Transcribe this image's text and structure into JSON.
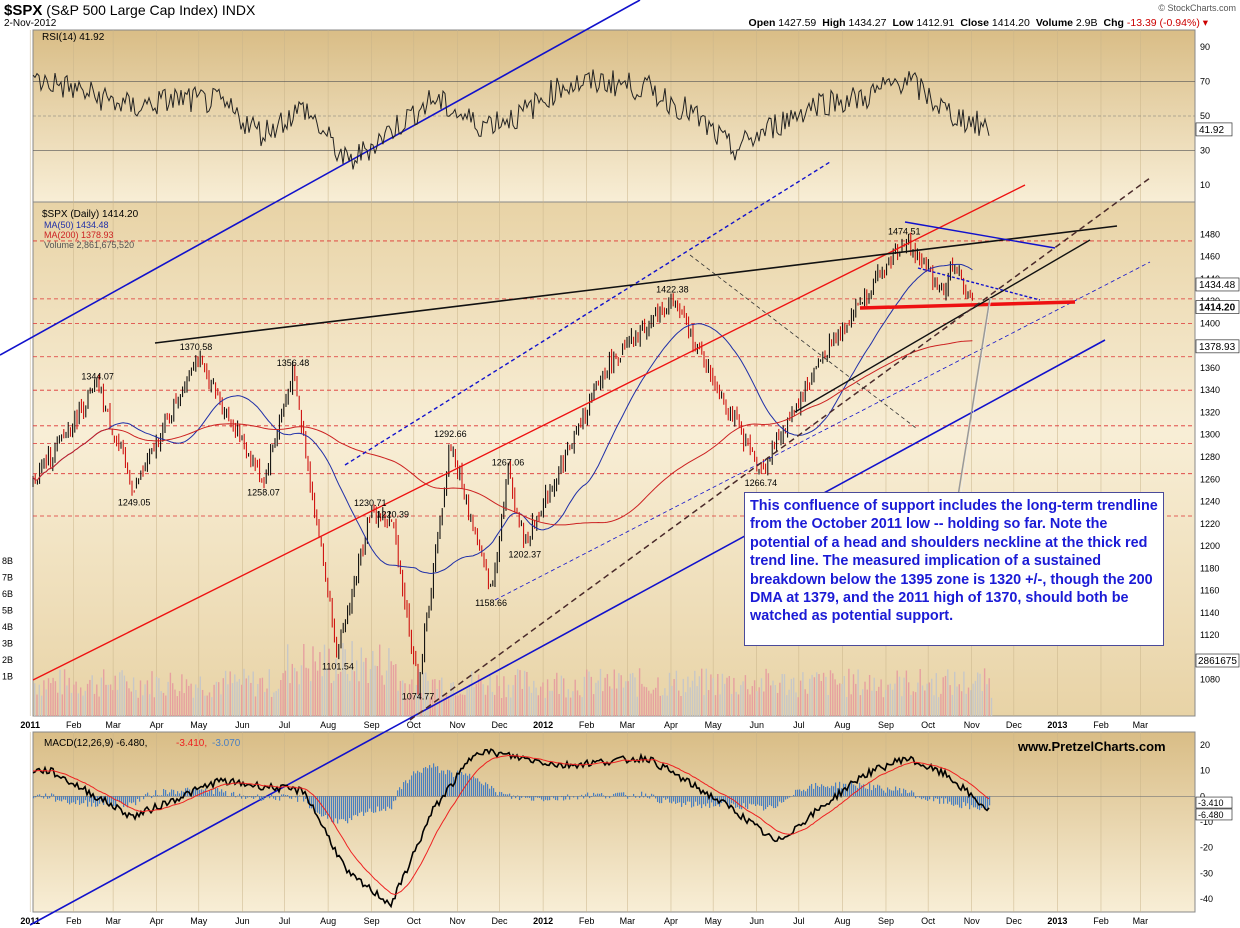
{
  "header": {
    "symbol": "$SPX",
    "name": "(S&P 500 Large Cap Index)",
    "exchange": "INDX",
    "date": "2-Nov-2012",
    "credit": "© StockCharts.com",
    "ohlc": [
      {
        "label": "Open",
        "value": "1427.59"
      },
      {
        "label": "High",
        "value": "1434.27"
      },
      {
        "label": "Low",
        "value": "1412.91"
      },
      {
        "label": "Close",
        "value": "1414.20"
      },
      {
        "label": "Volume",
        "value": "2.9B"
      },
      {
        "label": "Chg",
        "value": "-13.39 (-0.94%) ▾"
      }
    ]
  },
  "colors": {
    "panel_bg": "#e8d3a6",
    "panel_bg_light": "#f8eed6",
    "up": "#000000",
    "down": "#cc0000",
    "ma50": "#1f2fa8",
    "ma200": "#cc2222",
    "trend_blue": "#1111cc",
    "trend_red": "#ee1111"
  },
  "chart_data": [
    {
      "type": "line",
      "panel": "RSI",
      "legend": "RSI(14) 41.92",
      "yticks": [
        90,
        70,
        50,
        30,
        10
      ],
      "last_label": "41.92",
      "ylim": [
        0,
        100
      ],
      "x": [
        "2011-01",
        "2011-02",
        "2011-03",
        "2011-04",
        "2011-05",
        "2011-06",
        "2011-07",
        "2011-08",
        "2011-09",
        "2011-10",
        "2011-11",
        "2011-12",
        "2012-01",
        "2012-02",
        "2012-03",
        "2012-04",
        "2012-05",
        "2012-06",
        "2012-07",
        "2012-08",
        "2012-09",
        "2012-10",
        "2012-11"
      ],
      "values": [
        70,
        62,
        55,
        60,
        58,
        40,
        55,
        22,
        42,
        60,
        45,
        50,
        68,
        70,
        66,
        52,
        30,
        45,
        58,
        60,
        72,
        52,
        42
      ]
    },
    {
      "type": "candlestick",
      "panel": "Price",
      "legend": [
        "$SPX (Daily) 1414.20",
        "MA(50) 1434.48",
        "MA(200) 1378.93",
        "Volume 2,861,675,520"
      ],
      "ylim": [
        1060,
        1500
      ],
      "yticks": [
        1480,
        1460,
        1440,
        1420,
        1400,
        1380,
        1360,
        1340,
        1320,
        1300,
        1280,
        1260,
        1240,
        1220,
        1200,
        1180,
        1160,
        1140,
        1120,
        1100,
        1080
      ],
      "right_labels": [
        "1434.48",
        "1414.20",
        "1378.93",
        "2861675"
      ],
      "vol_ticks": [
        "8B",
        "7B",
        "6B",
        "5B",
        "4B",
        "3B",
        "2B",
        "1B"
      ],
      "months": [
        "2011",
        "Feb",
        "Mar",
        "Apr",
        "May",
        "Jun",
        "Jul",
        "Aug",
        "Sep",
        "Oct",
        "Nov",
        "Dec",
        "2012",
        "Feb",
        "Mar",
        "Apr",
        "May",
        "Jun",
        "Jul",
        "Aug",
        "Sep",
        "Oct",
        "Nov",
        "Dec",
        "2013",
        "Feb",
        "Mar"
      ],
      "close_path": [
        [
          "2011-01-03",
          1258
        ],
        [
          "2011-02-18",
          1344.07
        ],
        [
          "2011-03-16",
          1249.05
        ],
        [
          "2011-04-29",
          1370.58
        ],
        [
          "2011-06-16",
          1258.07
        ],
        [
          "2011-07-07",
          1356.48
        ],
        [
          "2011-08-08",
          1101.54
        ],
        [
          "2011-08-31",
          1230.71
        ],
        [
          "2011-09-16",
          1220.39
        ],
        [
          "2011-10-04",
          1074.77
        ],
        [
          "2011-10-27",
          1292.66
        ],
        [
          "2011-11-25",
          1158.66
        ],
        [
          "2011-12-07",
          1267.06
        ],
        [
          "2011-12-19",
          1202.37
        ],
        [
          "2012-02-15",
          1360
        ],
        [
          "2012-04-02",
          1422.38
        ],
        [
          "2012-06-04",
          1266.74
        ],
        [
          "2012-07-20",
          1375
        ],
        [
          "2012-09-14",
          1474.51
        ],
        [
          "2012-10-12",
          1430
        ],
        [
          "2012-10-19",
          1455
        ],
        [
          "2012-11-02",
          1414.2
        ]
      ],
      "price_labels": [
        {
          "text": "1344.07",
          "x": "2011-02-18",
          "y": 1344.07
        },
        {
          "text": "1370.58",
          "x": "2011-04-29",
          "y": 1370.58
        },
        {
          "text": "1356.48",
          "x": "2011-07-07",
          "y": 1356.48
        },
        {
          "text": "1249.05",
          "x": "2011-03-16",
          "y": 1249.05
        },
        {
          "text": "1258.07",
          "x": "2011-06-16",
          "y": 1258.07
        },
        {
          "text": "1230.71",
          "x": "2011-08-31",
          "y": 1230.71
        },
        {
          "text": "1220.39",
          "x": "2011-09-16",
          "y": 1220.39
        },
        {
          "text": "1101.54",
          "x": "2011-08-08",
          "y": 1101.54
        },
        {
          "text": "1074.77",
          "x": "2011-10-04",
          "y": 1074.77
        },
        {
          "text": "1292.66",
          "x": "2011-10-27",
          "y": 1292.66
        },
        {
          "text": "1267.06",
          "x": "2011-12-07",
          "y": 1267.06
        },
        {
          "text": "1202.37",
          "x": "2011-12-19",
          "y": 1202.37
        },
        {
          "text": "1158.66",
          "x": "2011-11-25",
          "y": 1158.66
        },
        {
          "text": "1422.38",
          "x": "2012-04-02",
          "y": 1422.38
        },
        {
          "text": "1266.74",
          "x": "2012-06-04",
          "y": 1266.74
        },
        {
          "text": "1474.51",
          "x": "2012-09-14",
          "y": 1474.51
        }
      ]
    },
    {
      "type": "line",
      "panel": "MACD",
      "legend": [
        "MACD(12,26,9) -6.480,",
        "-3.410,",
        "-3.070"
      ],
      "yticks": [
        20,
        10,
        0,
        -10,
        -20,
        -30,
        -40
      ],
      "right_labels": [
        "-3.410",
        "-6.480"
      ],
      "ylim": [
        -45,
        25
      ],
      "x": [
        "2011-01",
        "2011-03",
        "2011-05",
        "2011-07",
        "2011-08",
        "2011-09",
        "2011-10",
        "2011-11",
        "2012-01",
        "2012-03",
        "2012-05",
        "2012-06",
        "2012-08",
        "2012-09",
        "2012-10",
        "2012-11"
      ],
      "values": [
        10,
        -8,
        6,
        2,
        -30,
        -42,
        -5,
        18,
        12,
        15,
        -5,
        -18,
        8,
        15,
        8,
        -6.48
      ]
    }
  ],
  "annotation": "This confluence of support includes the long-term trendline from the October 2011 low -- holding so far.  Note the potential of a head and shoulders neckline at the thick red trend line.  The measured implication of a sustained breakdown below the 1395 zone is 1320 +/-, though the 200 DMA at 1379, and the 2011 high of 1370, should both be watched as potential support.",
  "watermark": "www.PretzelCharts.com"
}
